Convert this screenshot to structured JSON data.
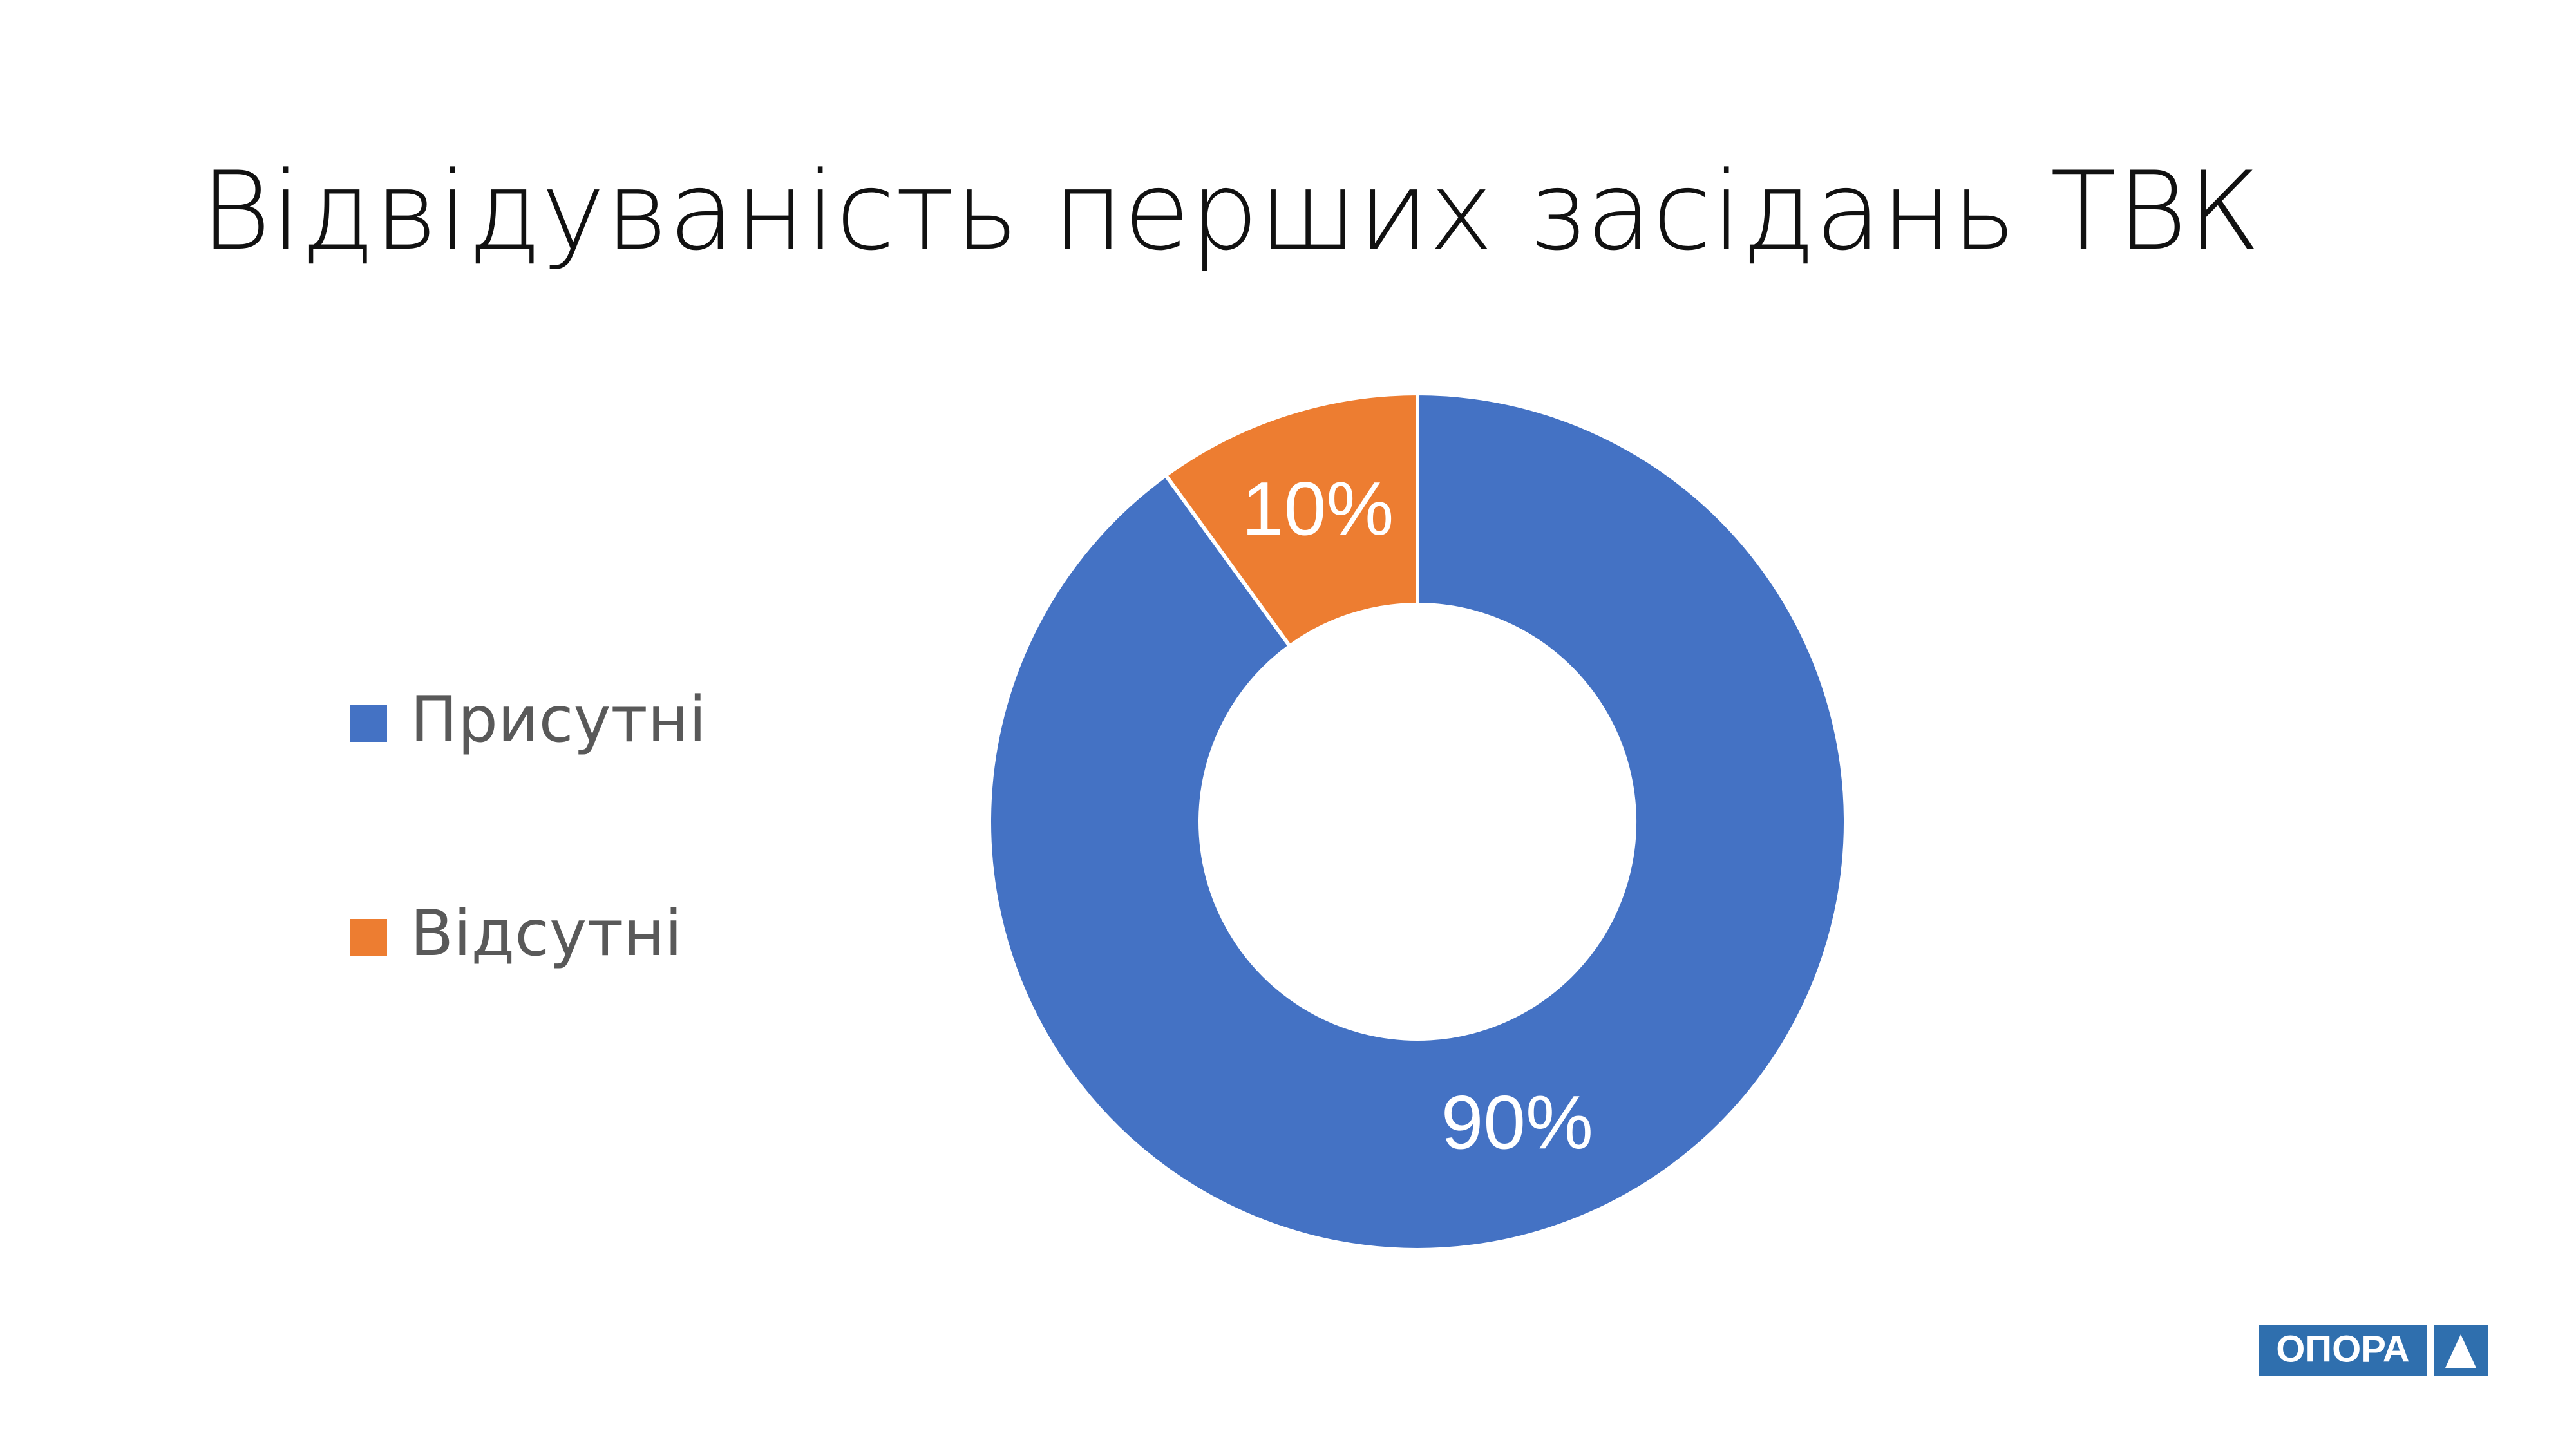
{
  "chart_data": {
    "type": "pie",
    "title": "Відвідуваність перших засідань ТВК",
    "categories": [
      "Присутні",
      "Відсутні"
    ],
    "values": [
      90,
      10
    ],
    "value_labels": [
      "90%",
      "10%"
    ],
    "colors": [
      "#4472c4",
      "#ed7d31"
    ],
    "donut": true,
    "legend": "left"
  },
  "logo": "ОПОРА"
}
